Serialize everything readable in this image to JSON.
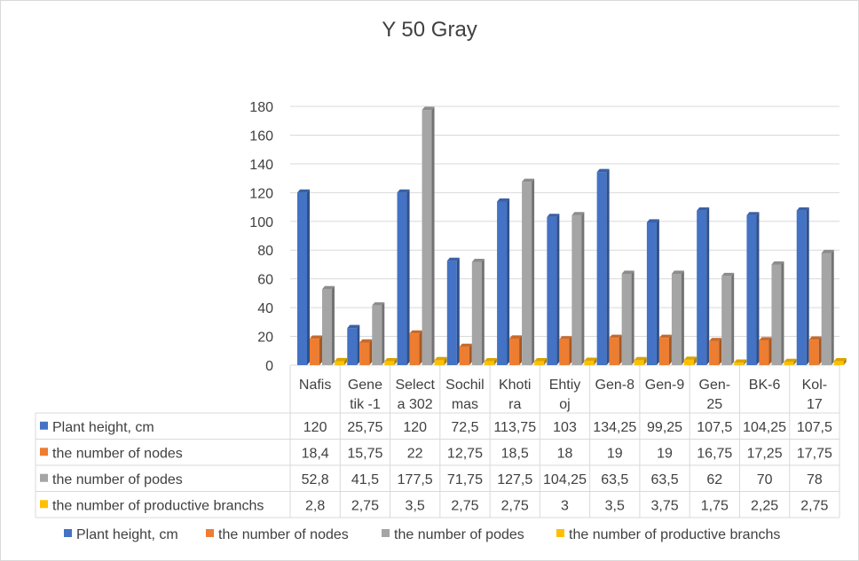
{
  "chart_data": {
    "type": "bar",
    "title": "Y 50 Gray",
    "categories": [
      [
        "Nafis"
      ],
      [
        "Gene",
        "tik -1"
      ],
      [
        "Select",
        "a 302"
      ],
      [
        "Sochil",
        "mas"
      ],
      [
        "Khoti",
        "ra"
      ],
      [
        "Ehtiy",
        "oj"
      ],
      [
        "Gen-8"
      ],
      [
        "Gen-9"
      ],
      [
        "Gen-",
        "25"
      ],
      [
        "BK-6"
      ],
      [
        "Kol-",
        "17"
      ]
    ],
    "ylim": [
      0,
      180
    ],
    "yticks": [
      0,
      20,
      40,
      60,
      80,
      100,
      120,
      140,
      160,
      180
    ],
    "grid": true,
    "legend": "bottom",
    "data_table": true,
    "series": [
      {
        "name": "Plant height, cm",
        "color": "#4472c4",
        "values": [
          120,
          25.75,
          120,
          72.5,
          113.75,
          103,
          134.25,
          99.25,
          107.5,
          104.25,
          107.5
        ],
        "labels": [
          "120",
          "25,75",
          "120",
          "72,5",
          "113,75",
          "103",
          "134,25",
          "99,25",
          "107,5",
          "104,25",
          "107,5"
        ]
      },
      {
        "name": "the number of nodes",
        "color": "#ed7d31",
        "values": [
          18.4,
          15.75,
          22,
          12.75,
          18.5,
          18,
          19,
          19,
          16.75,
          17.25,
          17.75
        ],
        "labels": [
          "18,4",
          "15,75",
          "22",
          "12,75",
          "18,5",
          "18",
          "19",
          "19",
          "16,75",
          "17,25",
          "17,75"
        ]
      },
      {
        "name": "the number of podes",
        "color": "#a5a5a5",
        "values": [
          52.8,
          41.5,
          177.5,
          71.75,
          127.5,
          104.25,
          63.5,
          63.5,
          62,
          70,
          78
        ],
        "labels": [
          "52,8",
          "41,5",
          "177,5",
          "71,75",
          "127,5",
          "104,25",
          "63,5",
          "63,5",
          "62",
          "70",
          "78"
        ]
      },
      {
        "name": "the number of productive branchs",
        "color": "#ffc000",
        "values": [
          2.8,
          2.75,
          3.5,
          2.75,
          2.75,
          3,
          3.5,
          3.75,
          1.75,
          2.25,
          2.75
        ],
        "labels": [
          "2,8",
          "2,75",
          "3,5",
          "2,75",
          "2,75",
          "3",
          "3,5",
          "3,75",
          "1,75",
          "2,25",
          "2,75"
        ]
      }
    ]
  }
}
